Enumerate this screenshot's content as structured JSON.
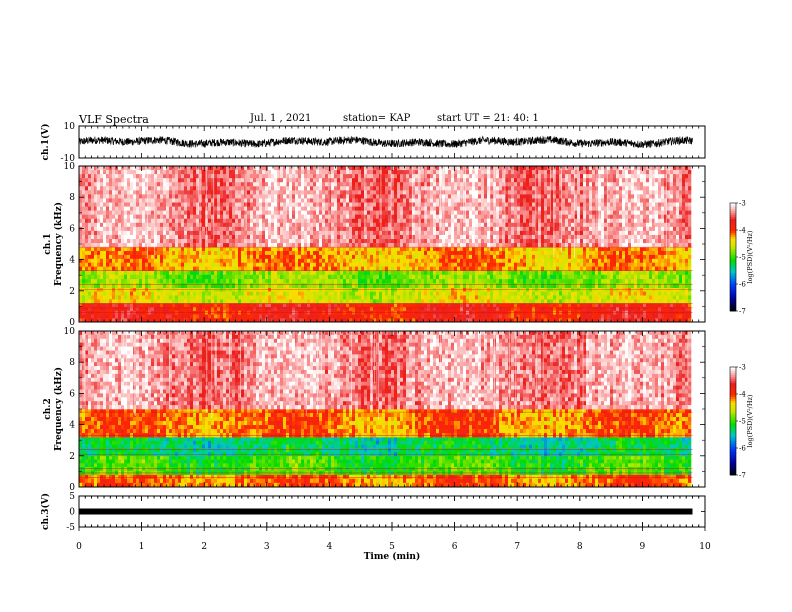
{
  "header": {
    "title": "VLF Spectra",
    "date": "Jul. 1 , 2021",
    "station": "station= KAP",
    "start": "start UT = 21: 40: 1"
  },
  "chart_data": [
    {
      "type": "line",
      "panel": "waveform-ch1",
      "ylabel": "ch.1(V)",
      "ylim": [
        -10,
        10
      ],
      "yticks": [
        "10",
        "-10"
      ],
      "description_series": "noisy waveform centered near 0 with amplitude about 3-4 V",
      "series": [
        {
          "amplitude_V": 3.5,
          "offset_V": 0
        }
      ]
    },
    {
      "type": "heatmap",
      "panel": "spectrogram-ch1",
      "ylabel": "ch.1\nFrequency (kHz)",
      "ylim": [
        0,
        10
      ],
      "yticks": [
        "0",
        "2",
        "4",
        "6",
        "8",
        "10"
      ],
      "colorbar": {
        "label": "log(PSD)(V²/Hz)",
        "range": [
          -7,
          -3
        ],
        "ticks": [
          "-3",
          "-4",
          "-5",
          "-6",
          "-7"
        ]
      },
      "bands_kHz": [
        {
          "from": 0,
          "to": 1.2,
          "logpsd": -3.8
        },
        {
          "from": 1.2,
          "to": 2.2,
          "logpsd": -4.5
        },
        {
          "from": 2.2,
          "to": 3.3,
          "logpsd": -4.8
        },
        {
          "from": 3.3,
          "to": 4.8,
          "logpsd": -4.2
        },
        {
          "from": 4.8,
          "to": 10,
          "logpsd": -3.3
        }
      ]
    },
    {
      "type": "heatmap",
      "panel": "spectrogram-ch2",
      "ylabel": "ch.2\nFrequency (kHz)",
      "ylim": [
        0,
        10
      ],
      "yticks": [
        "0",
        "2",
        "4",
        "6",
        "8",
        "10"
      ],
      "colorbar": {
        "label": "log(PSD)(V²/Hz)",
        "range": [
          -7,
          -3
        ],
        "ticks": [
          "-3",
          "-4",
          "-5",
          "-6",
          "-7"
        ]
      },
      "bands_kHz": [
        {
          "from": 0,
          "to": 0.8,
          "logpsd": -4.1
        },
        {
          "from": 0.8,
          "to": 2.0,
          "logpsd": -5.0
        },
        {
          "from": 2.0,
          "to": 3.2,
          "logpsd": -5.3
        },
        {
          "from": 3.2,
          "to": 5.0,
          "logpsd": -4.1
        },
        {
          "from": 5.0,
          "to": 10,
          "logpsd": -3.3
        }
      ]
    },
    {
      "type": "line",
      "panel": "waveform-ch3",
      "ylabel": "ch.3(V)",
      "ylim": [
        -5,
        5
      ],
      "yticks": [
        "5",
        "0",
        "-5"
      ],
      "series": [
        {
          "amplitude_V": 0.5,
          "offset_V": 0
        }
      ]
    }
  ],
  "xaxis": {
    "label": "Time (min)",
    "range": [
      0,
      10
    ],
    "ticks": [
      "0",
      "1",
      "2",
      "3",
      "4",
      "5",
      "6",
      "7",
      "8",
      "9",
      "10"
    ],
    "data_end_min": 9.8
  }
}
